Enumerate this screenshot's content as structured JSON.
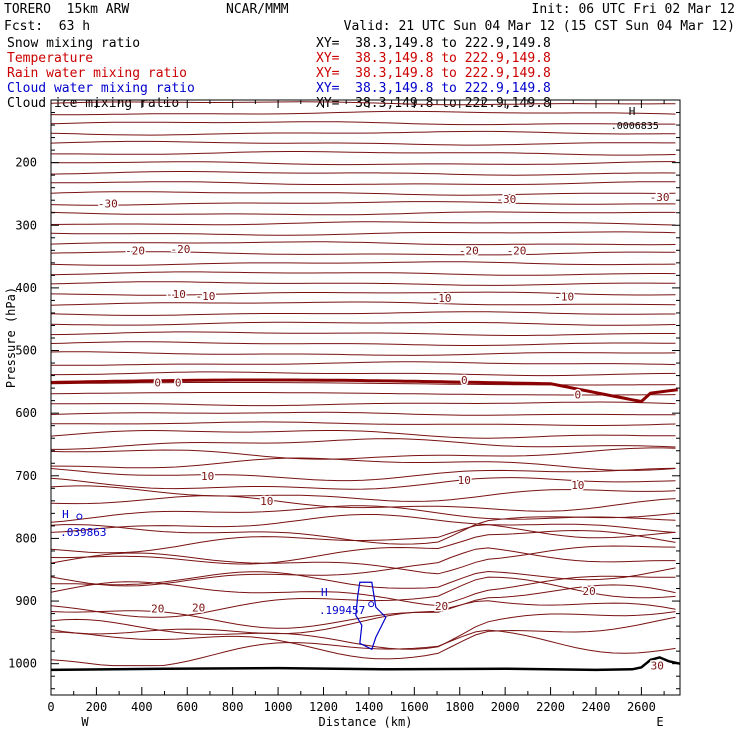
{
  "header": {
    "model": "TORERO  15km ARW",
    "center": "NCAR/MMM",
    "init": "Init: 06 UTC Fri 02 Mar 12",
    "fcst": "Fcst:  63 h",
    "valid": "Valid: 21 UTC Sun 04 Mar 12 (15 CST Sun 04 Mar 12)"
  },
  "legend": [
    {
      "name": "Snow mixing ratio",
      "xy": "XY=  38.3,149.8 to 222.9,149.8",
      "color": "#000000"
    },
    {
      "name": "Temperature",
      "xy": "XY=  38.3,149.8 to 222.9,149.8",
      "color": "#cc0000"
    },
    {
      "name": "Rain water mixing ratio",
      "xy": "XY=  38.3,149.8 to 222.9,149.8",
      "color": "#cc0000"
    },
    {
      "name": "Cloud water mixing ratio",
      "xy": "XY=  38.3,149.8 to 222.9,149.8",
      "color": "#0000cc"
    },
    {
      "name": "Cloud ice mixing ratio",
      "xy": "XY=  38.3,149.8 to 222.9,149.8",
      "color": "#000000"
    }
  ],
  "chart_data": {
    "type": "contour-cross-section",
    "xlabel": "Distance (km)",
    "ylabel": "Pressure (hPa)",
    "xlim": [
      0,
      2770
    ],
    "ylim": [
      1050,
      100
    ],
    "x_ticks": [
      0,
      200,
      400,
      600,
      800,
      1000,
      1200,
      1400,
      1600,
      1800,
      2000,
      2200,
      2400,
      2600
    ],
    "y_ticks": [
      200,
      300,
      400,
      500,
      600,
      700,
      800,
      900,
      1000
    ],
    "x_end_labels": {
      "left": "W",
      "right": "E"
    },
    "temperature_contour_labels": [
      {
        "label": "-30",
        "x": 250,
        "p": 265
      },
      {
        "label": "-30",
        "x": 2005,
        "p": 258
      },
      {
        "label": "-30",
        "x": 2680,
        "p": 255
      },
      {
        "label": "-20",
        "x": 370,
        "p": 340
      },
      {
        "label": "-20",
        "x": 570,
        "p": 338
      },
      {
        "label": "-20",
        "x": 1840,
        "p": 340
      },
      {
        "label": "-20",
        "x": 2050,
        "p": 340
      },
      {
        "label": "-10",
        "x": 550,
        "p": 410
      },
      {
        "label": "-10",
        "x": 680,
        "p": 413
      },
      {
        "label": "-10",
        "x": 1720,
        "p": 416
      },
      {
        "label": "-10",
        "x": 2260,
        "p": 414
      },
      {
        "label": "0",
        "x": 470,
        "p": 551
      },
      {
        "label": "0",
        "x": 560,
        "p": 551
      },
      {
        "label": "0",
        "x": 1820,
        "p": 547
      },
      {
        "label": "0",
        "x": 2320,
        "p": 570
      },
      {
        "label": "10",
        "x": 690,
        "p": 700
      },
      {
        "label": "10",
        "x": 950,
        "p": 740
      },
      {
        "label": "10",
        "x": 1820,
        "p": 707
      },
      {
        "label": "10",
        "x": 2320,
        "p": 715
      },
      {
        "label": "20",
        "x": 470,
        "p": 912
      },
      {
        "label": "20",
        "x": 650,
        "p": 910
      },
      {
        "label": "20",
        "x": 1720,
        "p": 908
      },
      {
        "label": "20",
        "x": 2370,
        "p": 884
      },
      {
        "label": "30",
        "x": 2670,
        "p": 1003
      }
    ],
    "temperature_levels": [
      -30,
      -20,
      -10,
      0,
      10,
      20,
      30
    ],
    "cloud_water_labels": [
      {
        "label": "H",
        "value": ".039863",
        "x": 40,
        "p": 780
      },
      {
        "label": "H",
        "value": ".199457",
        "x": 1180,
        "p": 905
      }
    ],
    "snow_max": {
      "label": "H",
      "value": ".0006835",
      "x": 2500,
      "p": 130
    },
    "surface_pressure": [
      {
        "x": 0,
        "p": 1010
      },
      {
        "x": 500,
        "p": 1008
      },
      {
        "x": 1000,
        "p": 1007
      },
      {
        "x": 1500,
        "p": 1009
      },
      {
        "x": 2000,
        "p": 1008
      },
      {
        "x": 2400,
        "p": 1010
      },
      {
        "x": 2560,
        "p": 1009
      },
      {
        "x": 2600,
        "p": 1006
      },
      {
        "x": 2640,
        "p": 994
      },
      {
        "x": 2680,
        "p": 990
      },
      {
        "x": 2720,
        "p": 996
      },
      {
        "x": 2770,
        "p": 1000
      }
    ]
  }
}
